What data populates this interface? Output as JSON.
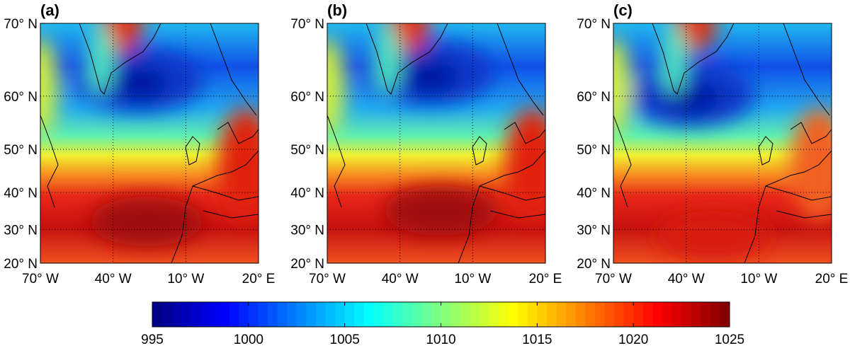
{
  "panels": [
    {
      "label": "(a)"
    },
    {
      "label": "(b)"
    },
    {
      "label": "(c)"
    }
  ],
  "map": {
    "latlim": [
      20,
      70
    ],
    "lonlim": [
      -70,
      20
    ],
    "lat_ticks": [
      {
        "value": 70,
        "label": "70° N"
      },
      {
        "value": 60,
        "label": "60° N"
      },
      {
        "value": 50,
        "label": "50° N"
      },
      {
        "value": 40,
        "label": "40° N"
      },
      {
        "value": 30,
        "label": "30° N"
      },
      {
        "value": 20,
        "label": "20° N"
      }
    ],
    "lon_ticks": [
      {
        "value": -70,
        "label": "70° W"
      },
      {
        "value": -40,
        "label": "40° W"
      },
      {
        "value": -10,
        "label": "10° W"
      },
      {
        "value": 20,
        "label": "20° E"
      }
    ],
    "grid": true
  },
  "colorbar": {
    "lim": [
      995,
      1025
    ],
    "ticks": [
      995,
      1000,
      1005,
      1010,
      1015,
      1020,
      1025
    ],
    "colormap": "jet"
  }
}
